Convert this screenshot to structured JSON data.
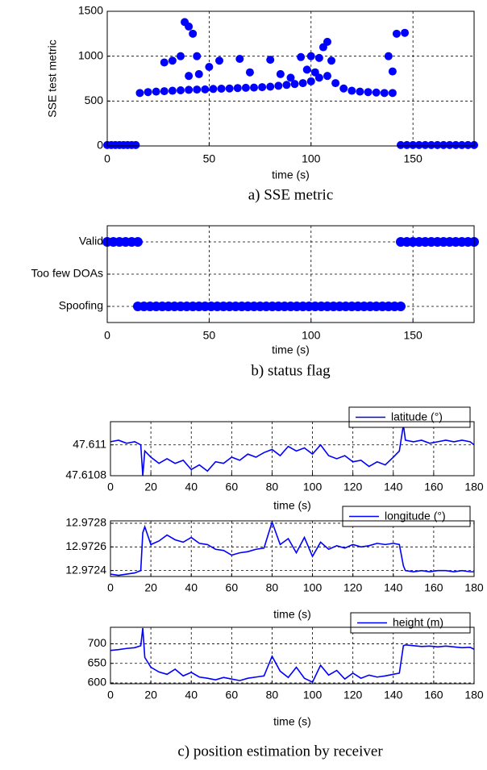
{
  "chart_data": [
    {
      "type": "scatter",
      "title": "a) SSE metric",
      "xlabel": "time (s)",
      "ylabel": "SSE test metric",
      "color": "#0000ff",
      "x": [
        0,
        2,
        4,
        6,
        8,
        10,
        12,
        14,
        16,
        20,
        24,
        28,
        32,
        36,
        40,
        44,
        48,
        52,
        56,
        60,
        64,
        68,
        72,
        76,
        80,
        84,
        88,
        92,
        96,
        100,
        104,
        108,
        112,
        116,
        120,
        124,
        128,
        132,
        136,
        140,
        38,
        40,
        42,
        36,
        28,
        32,
        44,
        45,
        40,
        55,
        50,
        65,
        70,
        80,
        85,
        95,
        100,
        104,
        106,
        108,
        110,
        98,
        102,
        138,
        142,
        146,
        140,
        90,
        144,
        147,
        150,
        153,
        156,
        159,
        162,
        165,
        168,
        171,
        174,
        177,
        180
      ],
      "values": [
        10,
        10,
        10,
        10,
        10,
        10,
        10,
        10,
        590,
        600,
        605,
        610,
        615,
        620,
        625,
        628,
        630,
        635,
        638,
        640,
        645,
        648,
        650,
        655,
        660,
        670,
        680,
        690,
        700,
        720,
        760,
        780,
        700,
        640,
        615,
        605,
        600,
        595,
        590,
        590,
        1380,
        1330,
        1250,
        1000,
        930,
        950,
        1000,
        800,
        780,
        950,
        880,
        970,
        820,
        960,
        800,
        990,
        1000,
        980,
        1100,
        1160,
        950,
        850,
        820,
        1000,
        1250,
        1260,
        830,
        760,
        10,
        10,
        10,
        10,
        10,
        10,
        10,
        10,
        10,
        10,
        10,
        10,
        10
      ],
      "xlim": [
        0,
        180
      ],
      "xticks": [
        0,
        50,
        100,
        150
      ],
      "ylim": [
        0,
        1500
      ],
      "yticks": [
        0,
        500,
        1000,
        1500
      ],
      "grid": true
    },
    {
      "type": "scatter",
      "title": "b) status flag",
      "xlabel": "time (s)",
      "color": "#0000ff",
      "x": [
        0,
        3,
        6,
        9,
        12,
        15,
        15,
        18,
        21,
        24,
        27,
        30,
        33,
        36,
        39,
        42,
        45,
        48,
        51,
        54,
        57,
        60,
        63,
        66,
        69,
        72,
        75,
        78,
        81,
        84,
        87,
        90,
        93,
        96,
        99,
        102,
        105,
        108,
        111,
        114,
        117,
        120,
        123,
        126,
        129,
        132,
        135,
        138,
        141,
        144,
        144,
        147,
        150,
        153,
        156,
        159,
        162,
        165,
        168,
        171,
        174,
        177,
        180
      ],
      "values": [
        2,
        2,
        2,
        2,
        2,
        2,
        0,
        0,
        0,
        0,
        0,
        0,
        0,
        0,
        0,
        0,
        0,
        0,
        0,
        0,
        0,
        0,
        0,
        0,
        0,
        0,
        0,
        0,
        0,
        0,
        0,
        0,
        0,
        0,
        0,
        0,
        0,
        0,
        0,
        0,
        0,
        0,
        0,
        0,
        0,
        0,
        0,
        0,
        0,
        0,
        2,
        2,
        2,
        2,
        2,
        2,
        2,
        2,
        2,
        2,
        2,
        2,
        2
      ],
      "xlim": [
        0,
        180
      ],
      "xticks": [
        0,
        50,
        100,
        150
      ],
      "ylim": [
        -0.5,
        2.5
      ],
      "yticks": [
        {
          "value": 0,
          "label": "Spoofing"
        },
        {
          "value": 1,
          "label": "Too few DOAs"
        },
        {
          "value": 2,
          "label": "Valid"
        }
      ],
      "grid": true
    },
    {
      "type": "line",
      "title": "c) position estimation by receiver",
      "xlabel": "time (s)",
      "legend": "upper right",
      "x": [
        0,
        4,
        8,
        12,
        15,
        16,
        17,
        20,
        24,
        28,
        32,
        36,
        40,
        44,
        48,
        52,
        56,
        60,
        64,
        68,
        72,
        76,
        80,
        84,
        88,
        92,
        96,
        100,
        104,
        108,
        112,
        116,
        120,
        124,
        128,
        132,
        136,
        140,
        143,
        145,
        146,
        150,
        154,
        158,
        162,
        166,
        170,
        174,
        178,
        180
      ],
      "series": [
        {
          "name": "latitude (°)",
          "color": "#0000ff",
          "values": [
            47.61102,
            47.61103,
            47.61101,
            47.61102,
            47.611,
            47.6108,
            47.61096,
            47.61092,
            47.61088,
            47.61091,
            47.61088,
            47.6109,
            47.61084,
            47.61087,
            47.61083,
            47.61089,
            47.61088,
            47.61092,
            47.6109,
            47.61094,
            47.61092,
            47.61095,
            47.61097,
            47.61093,
            47.61099,
            47.61096,
            47.61098,
            47.61094,
            47.611,
            47.61093,
            47.61091,
            47.61093,
            47.61089,
            47.6109,
            47.61086,
            47.61089,
            47.61087,
            47.61092,
            47.61096,
            47.61113,
            47.61103,
            47.61102,
            47.61103,
            47.61101,
            47.61102,
            47.61103,
            47.61102,
            47.61103,
            47.61102,
            47.611
          ]
        }
      ],
      "xlim": [
        0,
        180
      ],
      "xticks": [
        0,
        20,
        40,
        60,
        80,
        100,
        120,
        140,
        160,
        180
      ],
      "ylim": [
        47.6108,
        47.61115
      ],
      "yticks": [
        47.6108,
        47.611
      ],
      "grid": true
    },
    {
      "type": "line",
      "xlabel": "time (s)",
      "legend": "upper right",
      "x": [
        0,
        4,
        8,
        12,
        15,
        16,
        17,
        20,
        24,
        28,
        32,
        36,
        40,
        44,
        48,
        52,
        56,
        60,
        64,
        68,
        72,
        76,
        80,
        84,
        88,
        92,
        96,
        100,
        104,
        108,
        112,
        116,
        120,
        124,
        128,
        132,
        136,
        140,
        143,
        145,
        146,
        150,
        154,
        158,
        162,
        166,
        170,
        174,
        178,
        180
      ],
      "series": [
        {
          "name": "longitude (°)",
          "color": "#0000ff",
          "values": [
            12.97237,
            12.97236,
            12.97237,
            12.97238,
            12.9724,
            12.97272,
            12.97277,
            12.97262,
            12.97265,
            12.9727,
            12.97266,
            12.97264,
            12.97268,
            12.97263,
            12.97262,
            12.97258,
            12.97257,
            12.97253,
            12.97255,
            12.97256,
            12.97258,
            12.97259,
            12.97281,
            12.97262,
            12.97267,
            12.97255,
            12.97268,
            12.97252,
            12.97264,
            12.97258,
            12.97261,
            12.97259,
            12.97262,
            12.9726,
            12.97261,
            12.97263,
            12.97262,
            12.97263,
            12.97262,
            12.97244,
            12.9724,
            12.97239,
            12.9724,
            12.97239,
            12.9724,
            12.9724,
            12.97239,
            12.9724,
            12.97239,
            12.97239
          ]
        }
      ],
      "xlim": [
        0,
        180
      ],
      "xticks": [
        0,
        20,
        40,
        60,
        80,
        100,
        120,
        140,
        160,
        180
      ],
      "ylim": [
        12.97235,
        12.97282
      ],
      "yticks": [
        12.9724,
        12.9726,
        12.9728
      ],
      "grid": true
    },
    {
      "type": "line",
      "xlabel": "time (s)",
      "legend": "upper right",
      "x": [
        0,
        4,
        8,
        12,
        15,
        16,
        17,
        20,
        24,
        28,
        32,
        36,
        40,
        44,
        48,
        52,
        56,
        60,
        64,
        68,
        72,
        76,
        80,
        84,
        88,
        92,
        96,
        100,
        104,
        108,
        112,
        116,
        120,
        124,
        128,
        132,
        136,
        140,
        143,
        145,
        146,
        150,
        154,
        158,
        162,
        166,
        170,
        174,
        178,
        180
      ],
      "series": [
        {
          "name": "height (m)",
          "color": "#0000ff",
          "values": [
            683,
            685,
            688,
            690,
            695,
            740,
            665,
            640,
            628,
            622,
            635,
            618,
            627,
            615,
            612,
            608,
            614,
            610,
            606,
            612,
            615,
            618,
            668,
            630,
            614,
            640,
            612,
            602,
            645,
            620,
            632,
            610,
            625,
            612,
            620,
            615,
            618,
            622,
            625,
            695,
            697,
            695,
            693,
            694,
            692,
            694,
            692,
            690,
            691,
            686
          ]
        }
      ],
      "xlim": [
        0,
        180
      ],
      "xticks": [
        0,
        20,
        40,
        60,
        80,
        100,
        120,
        140,
        160,
        180
      ],
      "ylim": [
        598,
        742
      ],
      "yticks": [
        600,
        650,
        700
      ],
      "grid": true
    }
  ]
}
